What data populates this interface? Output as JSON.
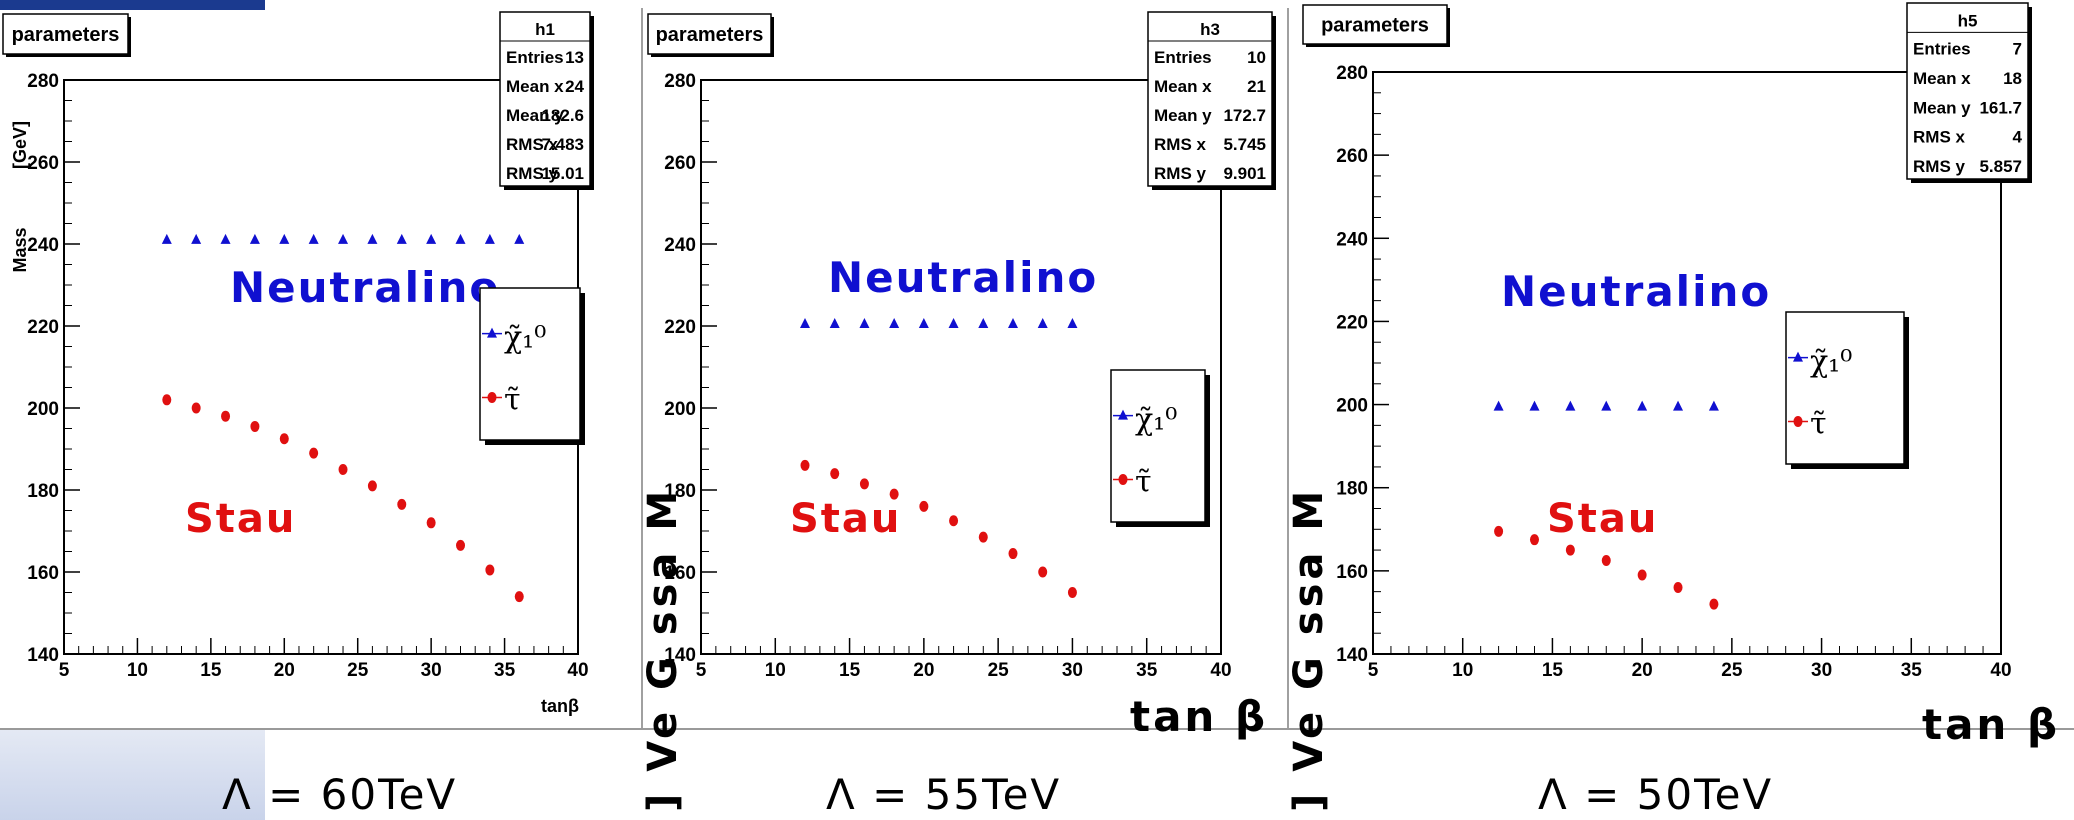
{
  "chart_data": [
    {
      "type": "scatter",
      "box_label": "parameters",
      "stats": {
        "title": "h1",
        "rows": [
          {
            "label": "Entries",
            "value": "13"
          },
          {
            "label": "Mean x",
            "value": "24"
          },
          {
            "label": "Mean y",
            "value": "182.6"
          },
          {
            "label": "RMS x",
            "value": "7.483"
          },
          {
            "label": "RMS y",
            "value": "15.01"
          }
        ]
      },
      "xlabel": "tanβ",
      "ylabel": "Mass",
      "ylabel_unit": "[GeV]",
      "xlim": [
        5,
        40
      ],
      "ylim": [
        140,
        280
      ],
      "xticks": [
        5,
        10,
        15,
        20,
        25,
        30,
        35,
        40
      ],
      "yticks": [
        140,
        160,
        180,
        200,
        220,
        240,
        260,
        280
      ],
      "series": [
        {
          "name": "χ̃₁⁰",
          "marker": "triangle",
          "color": "#1010d0",
          "x": [
            12,
            14,
            16,
            18,
            20,
            22,
            24,
            26,
            28,
            30,
            32,
            34,
            36
          ],
          "y": [
            241,
            241,
            241,
            241,
            241,
            241,
            241,
            241,
            241,
            241,
            241,
            241,
            241
          ]
        },
        {
          "name": "τ̃",
          "marker": "circle",
          "color": "#e01010",
          "x": [
            12,
            14,
            16,
            18,
            20,
            22,
            24,
            26,
            28,
            30,
            32,
            34,
            36
          ],
          "y": [
            202,
            200,
            198,
            195.5,
            192.5,
            189,
            185,
            181,
            176.5,
            172,
            166.5,
            160.5,
            154
          ]
        }
      ],
      "annotations": [
        {
          "text": "Neutralino",
          "color": "#1010d0"
        },
        {
          "text": "Stau",
          "color": "#e01010"
        }
      ],
      "caption": "Λ = 60TeV"
    },
    {
      "type": "scatter",
      "box_label": "parameters",
      "stats": {
        "title": "h3",
        "rows": [
          {
            "label": "Entries",
            "value": "10"
          },
          {
            "label": "Mean x",
            "value": "21"
          },
          {
            "label": "Mean y",
            "value": "172.7"
          },
          {
            "label": "RMS x",
            "value": "5.745"
          },
          {
            "label": "RMS y",
            "value": "9.901"
          }
        ]
      },
      "xlabel": "tan β",
      "ylabel": "Mass [GeV]",
      "ylabel_mirrored": "] Ve G  ssa M",
      "xlim": [
        5,
        40
      ],
      "ylim": [
        140,
        280
      ],
      "xticks": [
        5,
        10,
        15,
        20,
        25,
        30,
        35,
        40
      ],
      "yticks": [
        140,
        160,
        180,
        200,
        220,
        240,
        260,
        280
      ],
      "series": [
        {
          "name": "χ̃₁⁰",
          "marker": "triangle",
          "color": "#1010d0",
          "x": [
            12,
            14,
            16,
            18,
            20,
            22,
            24,
            26,
            28,
            30
          ],
          "y": [
            220.5,
            220.5,
            220.5,
            220.5,
            220.5,
            220.5,
            220.5,
            220.5,
            220.5,
            220.5
          ]
        },
        {
          "name": "τ̃",
          "marker": "circle",
          "color": "#e01010",
          "x": [
            12,
            14,
            16,
            18,
            20,
            22,
            24,
            26,
            28,
            30
          ],
          "y": [
            186,
            184,
            181.5,
            179,
            176,
            172.5,
            168.5,
            164.5,
            160,
            155
          ]
        }
      ],
      "annotations": [
        {
          "text": "Neutralino",
          "color": "#1010d0"
        },
        {
          "text": "Stau",
          "color": "#e01010"
        }
      ],
      "caption": "Λ = 55TeV"
    },
    {
      "type": "scatter",
      "box_label": "parameters",
      "stats": {
        "title": "h5",
        "rows": [
          {
            "label": "Entries",
            "value": "7"
          },
          {
            "label": "Mean x",
            "value": "18"
          },
          {
            "label": "Mean y",
            "value": "161.7"
          },
          {
            "label": "RMS x",
            "value": "4"
          },
          {
            "label": "RMS y",
            "value": "5.857"
          }
        ]
      },
      "xlabel": "tan β",
      "ylabel": "Mass [GeV]",
      "ylabel_mirrored": "] Ve G  ssa M",
      "xlim": [
        5,
        40
      ],
      "ylim": [
        140,
        280
      ],
      "xticks": [
        5,
        10,
        15,
        20,
        25,
        30,
        35,
        40
      ],
      "yticks": [
        140,
        160,
        180,
        200,
        220,
        240,
        260,
        280
      ],
      "series": [
        {
          "name": "χ̃₁⁰",
          "marker": "triangle",
          "color": "#1010d0",
          "x": [
            12,
            14,
            16,
            18,
            20,
            22,
            24
          ],
          "y": [
            199.5,
            199.5,
            199.5,
            199.5,
            199.5,
            199.5,
            199.5
          ]
        },
        {
          "name": "τ̃",
          "marker": "circle",
          "color": "#e01010",
          "x": [
            12,
            14,
            16,
            18,
            20,
            22,
            24
          ],
          "y": [
            169.5,
            167.5,
            165,
            162.5,
            159,
            156,
            152
          ]
        }
      ],
      "annotations": [
        {
          "text": "Neutralino",
          "color": "#1010d0"
        },
        {
          "text": "Stau",
          "color": "#e01010"
        }
      ],
      "caption": "Λ = 50TeV"
    }
  ]
}
